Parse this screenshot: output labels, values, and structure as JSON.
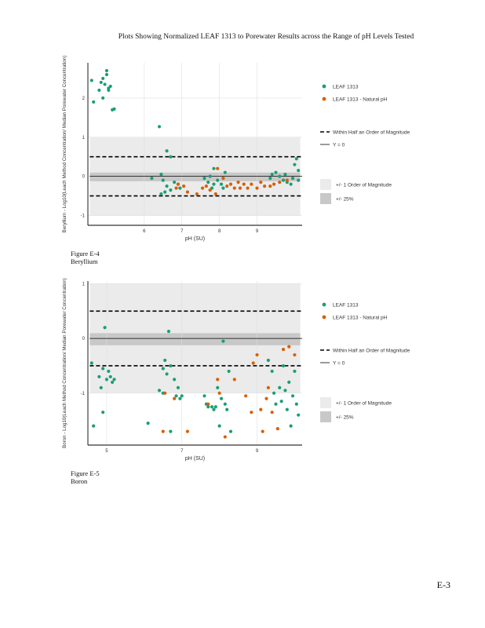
{
  "page": {
    "title": "Plots Showing Normalized LEAF 1313 to Porewater Results across the Range of pH Levels Tested",
    "page_number": "E-3"
  },
  "colors": {
    "leaf": "#1b9e77",
    "natural": "#d95f02",
    "band_outer": "#ebebeb",
    "band_inner": "#c8c8c8",
    "grid": "#e0e0e0"
  },
  "chart_data": [
    {
      "type": "scatter",
      "figure_label": "Figure E-4",
      "figure_name": "Beryllium",
      "ylabel": "Beryllium - Log10(Leach Method Concentration/ Median Porewater Concentration)",
      "xlabel": "pH (SU)",
      "xlim": [
        4.5,
        10.2
      ],
      "ylim": [
        -1.25,
        2.9
      ],
      "x_ticks": [
        6,
        7,
        8,
        9
      ],
      "x_tick_labels": [
        "6",
        "7",
        "8",
        "9"
      ],
      "y_ticks": [
        -1,
        0,
        1,
        2
      ],
      "y_tick_labels": [
        "-1",
        "0",
        "1",
        "2"
      ],
      "bands": {
        "order_of_magnitude": [
          -1,
          1
        ],
        "pct_25": [
          -0.125,
          0.097
        ],
        "half_order": [
          -0.5,
          0.5
        ],
        "zero": 0
      },
      "legend": {
        "leaf": "LEAF 1313",
        "natural": "LEAF 1313 - Natural pH",
        "half_order": "Within Half an Order of Magnitude",
        "zero_line": "Y = 0",
        "order_band": "+/- 1 Order of Magnitude",
        "pct_band": "+/- 25%"
      },
      "series": [
        {
          "name": "LEAF 1313",
          "points": [
            [
              4.6,
              2.45
            ],
            [
              4.65,
              1.9
            ],
            [
              4.8,
              2.2
            ],
            [
              4.85,
              2.4
            ],
            [
              4.9,
              2.5
            ],
            [
              4.9,
              2.0
            ],
            [
              4.95,
              2.35
            ],
            [
              5.0,
              2.7
            ],
            [
              5.0,
              2.6
            ],
            [
              5.05,
              2.2
            ],
            [
              5.1,
              2.3
            ],
            [
              5.15,
              1.7
            ],
            [
              5.2,
              1.72
            ],
            [
              5.05,
              2.25
            ],
            [
              6.4,
              1.27
            ],
            [
              6.6,
              0.65
            ],
            [
              6.7,
              0.5
            ],
            [
              6.2,
              -0.05
            ],
            [
              6.45,
              0.05
            ],
            [
              6.5,
              -0.1
            ],
            [
              6.55,
              -0.4
            ],
            [
              6.6,
              -0.25
            ],
            [
              6.7,
              -0.35
            ],
            [
              6.8,
              -0.15
            ],
            [
              6.9,
              -0.2
            ],
            [
              6.95,
              -0.3
            ],
            [
              6.45,
              -0.45
            ],
            [
              7.6,
              -0.05
            ],
            [
              7.7,
              -0.15
            ],
            [
              7.75,
              0.0
            ],
            [
              7.8,
              -0.3
            ],
            [
              7.85,
              -0.2
            ],
            [
              7.95,
              -0.1
            ],
            [
              8.05,
              -0.2
            ],
            [
              8.1,
              -0.3
            ],
            [
              8.15,
              0.1
            ],
            [
              7.85,
              0.2
            ],
            [
              9.35,
              -0.05
            ],
            [
              9.4,
              0.05
            ],
            [
              9.5,
              0.1
            ],
            [
              9.6,
              0.0
            ],
            [
              9.7,
              -0.1
            ],
            [
              9.75,
              0.05
            ],
            [
              9.8,
              -0.15
            ],
            [
              9.9,
              -0.2
            ],
            [
              9.95,
              -0.05
            ],
            [
              10.0,
              0.3
            ],
            [
              10.05,
              0.45
            ],
            [
              10.1,
              -0.1
            ],
            [
              10.1,
              0.15
            ]
          ]
        },
        {
          "name": "LEAF 1313 - Natural pH",
          "points": [
            [
              6.85,
              -0.3
            ],
            [
              6.9,
              -0.2
            ],
            [
              7.05,
              -0.25
            ],
            [
              7.15,
              -0.4
            ],
            [
              7.4,
              -0.45
            ],
            [
              7.55,
              -0.3
            ],
            [
              7.65,
              -0.25
            ],
            [
              7.75,
              -0.35
            ],
            [
              7.9,
              -0.45
            ],
            [
              7.95,
              0.2
            ],
            [
              8.1,
              -0.05
            ],
            [
              8.2,
              -0.25
            ],
            [
              8.3,
              -0.2
            ],
            [
              8.4,
              -0.3
            ],
            [
              8.5,
              -0.15
            ],
            [
              8.55,
              -0.3
            ],
            [
              8.65,
              -0.2
            ],
            [
              8.75,
              -0.3
            ],
            [
              8.85,
              -0.2
            ],
            [
              9.0,
              -0.3
            ],
            [
              9.1,
              -0.15
            ],
            [
              9.2,
              -0.25
            ],
            [
              9.35,
              -0.25
            ],
            [
              9.45,
              -0.2
            ],
            [
              9.6,
              -0.15
            ],
            [
              9.8,
              -0.1
            ]
          ]
        }
      ]
    },
    {
      "type": "scatter",
      "figure_label": "Figure E-5",
      "figure_name": "Boron",
      "ylabel": "Boron - Log10(Leach Method Concentration/ Median Porewater Concentration)",
      "xlabel": "pH (SU)",
      "xlim": [
        4.5,
        10.2
      ],
      "ylim": [
        -1.95,
        1.05
      ],
      "x_ticks": [
        5,
        7,
        9
      ],
      "x_tick_labels": [
        "5",
        "7",
        "9"
      ],
      "y_ticks": [
        -1,
        0,
        1
      ],
      "y_tick_labels": [
        "-1",
        "0",
        "1"
      ],
      "bands": {
        "order_of_magnitude": [
          -1,
          1
        ],
        "pct_25": [
          -0.125,
          0.097
        ],
        "half_order": [
          -0.5,
          0.5
        ],
        "zero": 0
      },
      "legend": {
        "leaf": "LEAF 1313",
        "natural": "LEAF 1313 - Natural pH",
        "half_order": "Within Half an Order of Magnitude",
        "zero_line": "Y = 0",
        "order_band": "+/- 1 Order of Magnitude",
        "pct_band": "+/- 25%"
      },
      "series": [
        {
          "name": "LEAF 1313",
          "points": [
            [
              4.6,
              -0.45
            ],
            [
              4.65,
              -1.6
            ],
            [
              4.8,
              -0.7
            ],
            [
              4.85,
              -0.9
            ],
            [
              4.9,
              -0.55
            ],
            [
              4.9,
              -1.35
            ],
            [
              4.95,
              0.2
            ],
            [
              5.0,
              -0.75
            ],
            [
              5.05,
              -0.6
            ],
            [
              5.1,
              -0.7
            ],
            [
              5.15,
              -0.8
            ],
            [
              5.2,
              -0.75
            ],
            [
              6.1,
              -1.55
            ],
            [
              6.4,
              -0.95
            ],
            [
              6.5,
              -1.0
            ],
            [
              6.5,
              -0.55
            ],
            [
              6.55,
              -0.4
            ],
            [
              6.6,
              -0.65
            ],
            [
              6.65,
              0.13
            ],
            [
              6.7,
              -0.5
            ],
            [
              6.8,
              -0.75
            ],
            [
              6.85,
              -1.05
            ],
            [
              6.9,
              -0.9
            ],
            [
              6.95,
              -1.1
            ],
            [
              7.0,
              -1.05
            ],
            [
              6.7,
              -1.7
            ],
            [
              7.6,
              -1.05
            ],
            [
              7.65,
              -1.2
            ],
            [
              7.7,
              -1.25
            ],
            [
              7.8,
              -1.25
            ],
            [
              7.85,
              -1.3
            ],
            [
              7.9,
              -1.25
            ],
            [
              7.95,
              -0.9
            ],
            [
              8.0,
              -1.6
            ],
            [
              8.05,
              -1.1
            ],
            [
              8.1,
              -0.05
            ],
            [
              8.15,
              -1.2
            ],
            [
              8.2,
              -1.3
            ],
            [
              8.25,
              -0.6
            ],
            [
              8.3,
              -1.7
            ],
            [
              9.3,
              -0.4
            ],
            [
              9.4,
              -0.6
            ],
            [
              9.45,
              -1.0
            ],
            [
              9.5,
              -1.2
            ],
            [
              9.6,
              -0.9
            ],
            [
              9.65,
              -1.15
            ],
            [
              9.7,
              -0.5
            ],
            [
              9.75,
              -0.95
            ],
            [
              9.8,
              -1.3
            ],
            [
              9.85,
              -0.8
            ],
            [
              9.9,
              -1.6
            ],
            [
              9.95,
              -1.05
            ],
            [
              10.0,
              -0.6
            ],
            [
              10.05,
              -1.2
            ],
            [
              10.1,
              -1.4
            ]
          ]
        },
        {
          "name": "LEAF 1313 - Natural pH",
          "points": [
            [
              6.5,
              -1.7
            ],
            [
              6.55,
              -1.0
            ],
            [
              6.8,
              -1.1
            ],
            [
              7.15,
              -1.7
            ],
            [
              7.7,
              -1.2
            ],
            [
              7.95,
              -0.75
            ],
            [
              8.0,
              -1.0
            ],
            [
              8.15,
              -1.8
            ],
            [
              8.4,
              -0.75
            ],
            [
              8.7,
              -1.05
            ],
            [
              8.85,
              -1.35
            ],
            [
              8.9,
              -0.45
            ],
            [
              9.0,
              -0.3
            ],
            [
              9.1,
              -1.3
            ],
            [
              9.15,
              -1.7
            ],
            [
              9.3,
              -0.9
            ],
            [
              9.4,
              -1.35
            ],
            [
              9.55,
              -1.65
            ],
            [
              9.7,
              -0.2
            ],
            [
              9.85,
              -0.15
            ],
            [
              10.0,
              -0.3
            ],
            [
              9.25,
              -1.1
            ]
          ]
        }
      ]
    }
  ]
}
